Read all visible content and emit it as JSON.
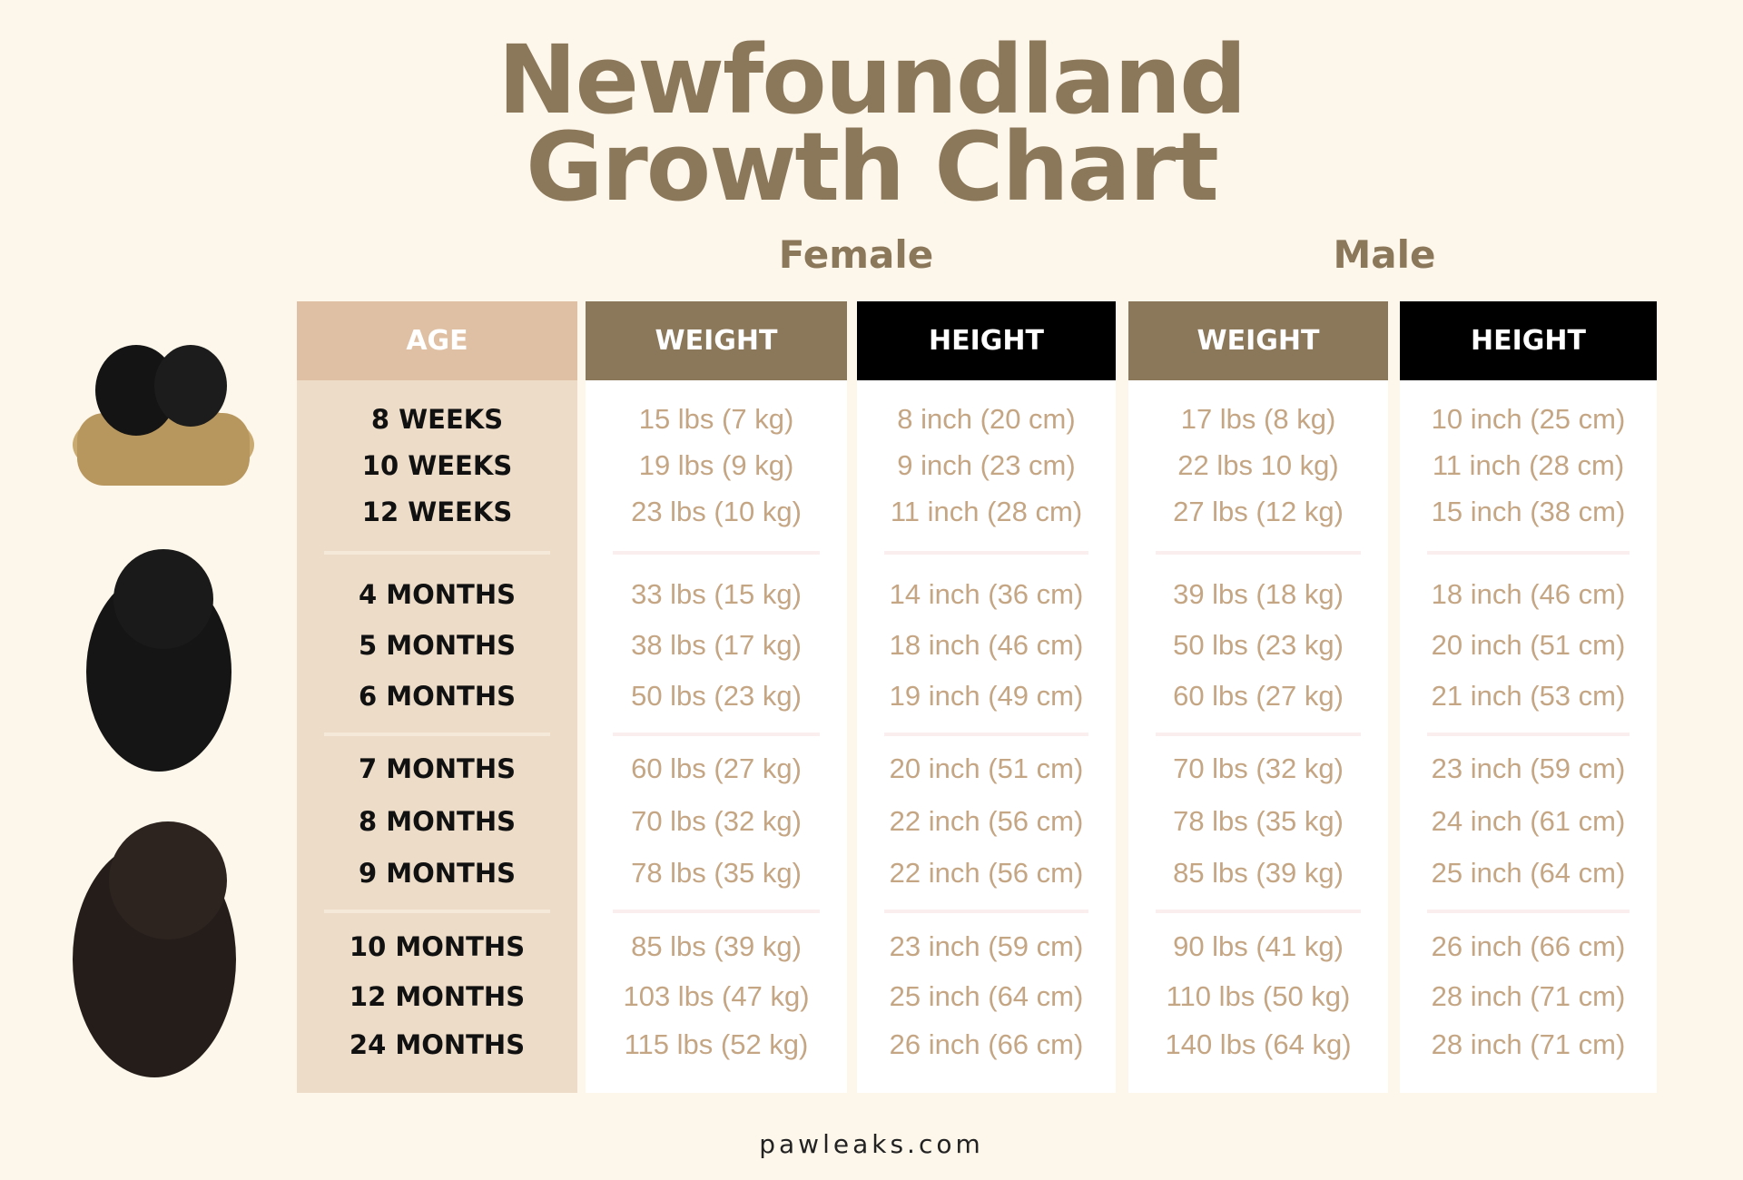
{
  "title": [
    "Newfoundland",
    "Growth Chart"
  ],
  "groups": [
    "Female",
    "Male"
  ],
  "columns": [
    "AGE",
    "WEIGHT",
    "HEIGHT",
    "WEIGHT",
    "HEIGHT"
  ],
  "rows": [
    [
      "8 WEEKS",
      "15 lbs (7 kg)",
      "8 inch (20 cm)",
      "17 lbs (8 kg)",
      "10 inch (25 cm)"
    ],
    [
      "10 WEEKS",
      "19 lbs (9 kg)",
      "9 inch (23 cm)",
      "22 lbs 10 kg)",
      "11 inch (28 cm)"
    ],
    [
      "12 WEEKS",
      "23 lbs (10 kg)",
      "11 inch (28 cm)",
      "27 lbs (12 kg)",
      "15 inch (38 cm)"
    ],
    [
      "4 MONTHS",
      "33 lbs (15 kg)",
      "14 inch (36 cm)",
      "39 lbs (18 kg)",
      "18 inch (46 cm)"
    ],
    [
      "5 MONTHS",
      "38 lbs (17 kg)",
      "18 inch (46 cm)",
      "50 lbs (23 kg)",
      "20 inch (51 cm)"
    ],
    [
      "6 MONTHS",
      "50 lbs (23 kg)",
      "19 inch (49 cm)",
      "60 lbs (27 kg)",
      "21 inch (53 cm)"
    ],
    [
      "7 MONTHS",
      "60 lbs (27 kg)",
      "20 inch (51 cm)",
      "70 lbs (32 kg)",
      "23 inch (59 cm)"
    ],
    [
      "8 MONTHS",
      "70 lbs (32 kg)",
      "22 inch (56 cm)",
      "78 lbs (35 kg)",
      "24 inch (61 cm)"
    ],
    [
      "9 MONTHS",
      "78 lbs (35 kg)",
      "22 inch (56 cm)",
      "85 lbs (39 kg)",
      "25 inch (64 cm)"
    ],
    [
      "10 MONTHS",
      "85 lbs (39 kg)",
      "23 inch (59 cm)",
      "90 lbs (41 kg)",
      "26 inch (66 cm)"
    ],
    [
      "12 MONTHS",
      "103 lbs (47 kg)",
      "25 inch (64 cm)",
      "110 lbs (50 kg)",
      "28 inch (71 cm)"
    ],
    [
      "24 MONTHS",
      "115 lbs (52 kg)",
      "26 inch (66 cm)",
      "140 lbs (64 kg)",
      "28 inch (71 cm)"
    ]
  ],
  "footer": "pawleaks.com"
}
